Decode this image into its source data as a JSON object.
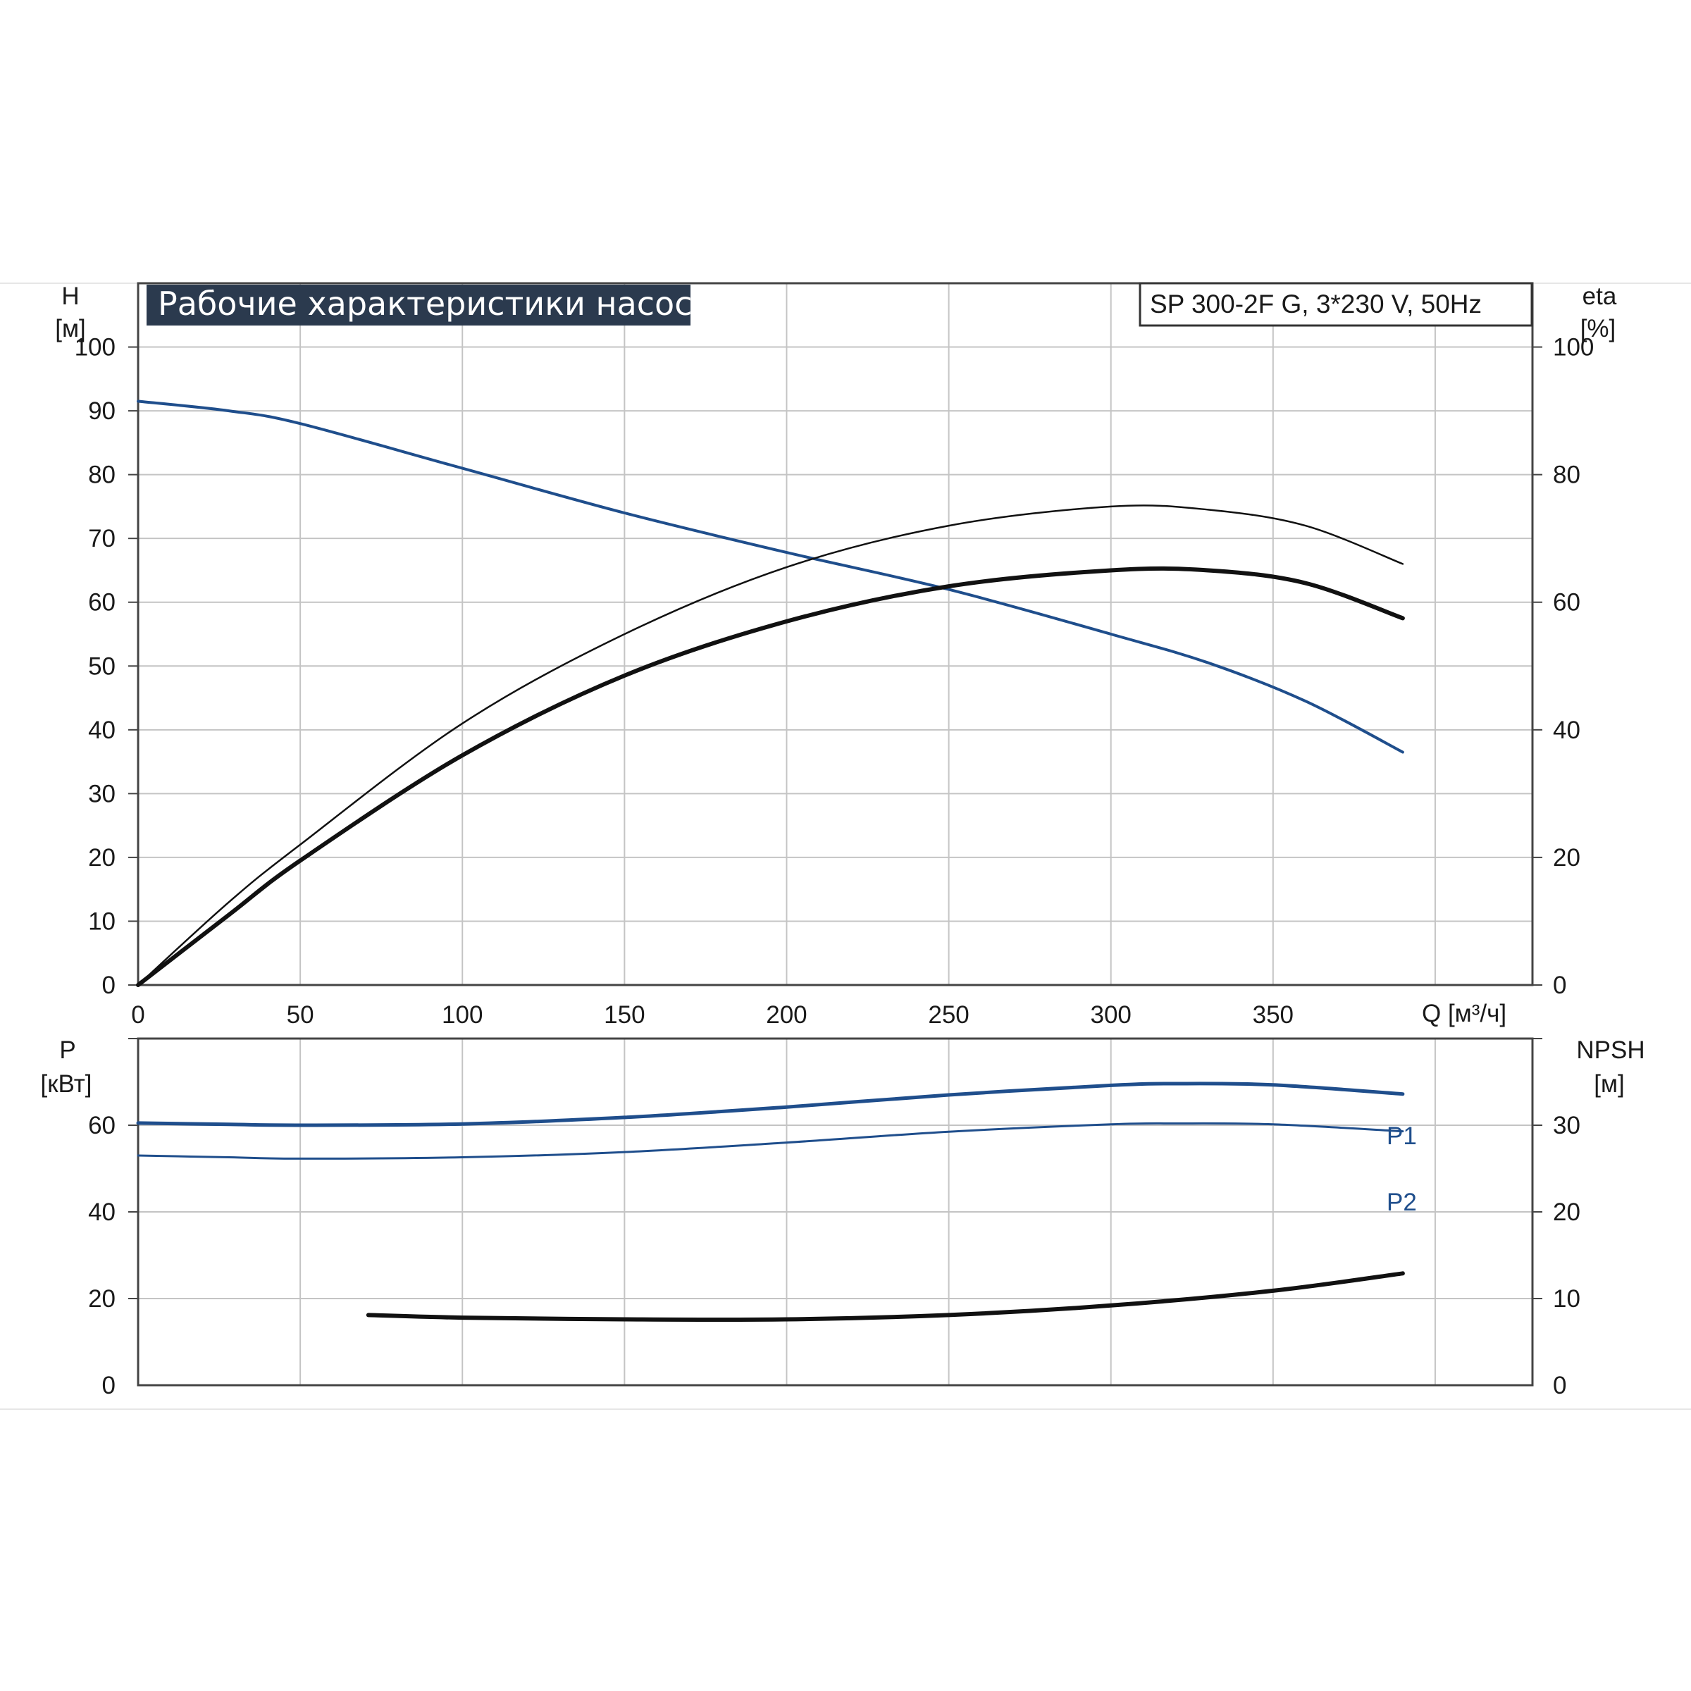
{
  "colors": {
    "blue": "#1f4e8c",
    "black": "#111111",
    "grid": "#c4c4c4",
    "title_bg": "#2b3a4e"
  },
  "chart_data": [
    {
      "type": "line",
      "title": "Рабочие характеристики насоса",
      "model": "SP 300-2F G, 3*230 V, 50Hz",
      "ylabel": "H",
      "ylabel_unit": "[м]",
      "y2label": "eta",
      "y2label_unit": "[%]",
      "xlabel": "Q [м³/ч]",
      "xlim": [
        0,
        430
      ],
      "ylim": [
        0,
        110
      ],
      "y2lim": [
        0,
        110
      ],
      "x_ticks": [
        "0",
        "50",
        "100",
        "150",
        "200",
        "250",
        "300",
        "350"
      ],
      "y_ticks": [
        "0",
        "10",
        "20",
        "30",
        "40",
        "50",
        "60",
        "70",
        "80",
        "90",
        "100"
      ],
      "y2_ticks": [
        "0",
        "20",
        "40",
        "60",
        "80",
        "100"
      ],
      "grid": true,
      "series": [
        {
          "name": "H",
          "axis": "left",
          "color": "#1f4e8c",
          "width": 4,
          "x": [
            0,
            28,
            50,
            100,
            150,
            200,
            250,
            300,
            330,
            360,
            390
          ],
          "y": [
            91.5,
            90,
            88,
            81,
            74,
            67.8,
            62,
            55,
            50.5,
            44.5,
            36.5
          ]
        },
        {
          "name": "eta-thin",
          "axis": "right",
          "color": "#111111",
          "width": 2.5,
          "x": [
            0,
            28,
            50,
            100,
            150,
            200,
            250,
            300,
            330,
            360,
            390
          ],
          "y": [
            0,
            13,
            22,
            41,
            55,
            65.5,
            72,
            75,
            74.5,
            72,
            66
          ]
        },
        {
          "name": "eta-thick",
          "axis": "right",
          "color": "#111111",
          "width": 6,
          "x": [
            0,
            28,
            50,
            100,
            150,
            200,
            250,
            300,
            330,
            360,
            390
          ],
          "y": [
            0,
            11,
            19.5,
            36,
            48.5,
            57,
            62.5,
            65,
            65,
            63,
            57.5
          ]
        }
      ]
    },
    {
      "type": "line",
      "ylabel": "P",
      "ylabel_unit": "[кВт]",
      "y2label": "NPSH",
      "y2label_unit": "[м]",
      "xlim": [
        0,
        430
      ],
      "ylim": [
        0,
        80
      ],
      "y2lim": [
        0,
        40
      ],
      "y_ticks": [
        "0",
        "20",
        "40",
        "60"
      ],
      "y2_ticks": [
        "0",
        "10",
        "20",
        "30"
      ],
      "grid": true,
      "series": [
        {
          "name": "P1",
          "axis": "left",
          "color": "#1f4e8c",
          "width": 5,
          "x": [
            0,
            28,
            50,
            100,
            150,
            200,
            250,
            300,
            320,
            350,
            390
          ],
          "y": [
            60.5,
            60.2,
            60,
            60.3,
            61.8,
            64.2,
            67,
            69.2,
            69.6,
            69.3,
            67.2
          ]
        },
        {
          "name": "P2",
          "axis": "left",
          "color": "#1f4e8c",
          "width": 3,
          "x": [
            0,
            28,
            50,
            100,
            150,
            200,
            250,
            300,
            320,
            350,
            390
          ],
          "y": [
            53,
            52.6,
            52.3,
            52.6,
            53.8,
            56,
            58.5,
            60.2,
            60.4,
            60.2,
            58.6
          ]
        },
        {
          "name": "NPSH",
          "axis": "right",
          "color": "#111111",
          "width": 6,
          "x": [
            71,
            100,
            150,
            200,
            250,
            300,
            350,
            390
          ],
          "y": [
            8.1,
            7.8,
            7.6,
            7.6,
            8.1,
            9.2,
            10.9,
            12.9
          ]
        }
      ]
    }
  ]
}
